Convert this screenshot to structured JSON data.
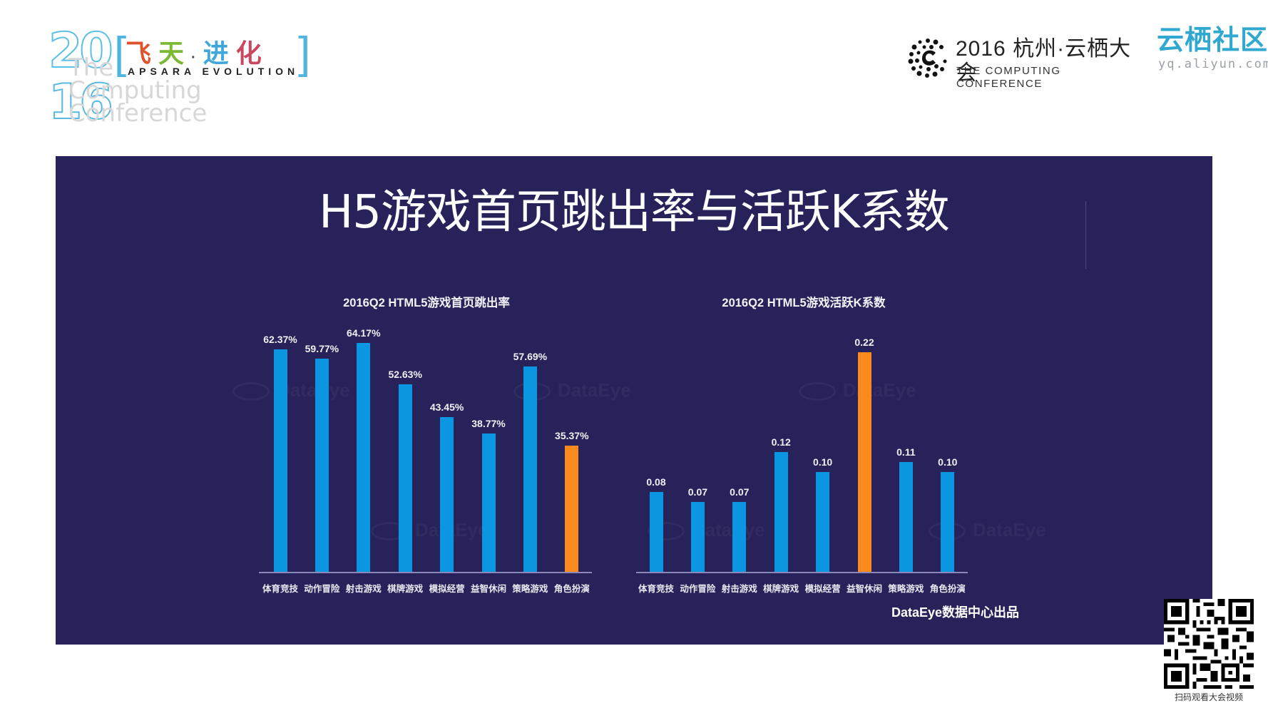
{
  "header": {
    "left_logo": {
      "year_top": "20",
      "year_bottom": "16",
      "ghost_lines": [
        "The",
        "Computing",
        "Conference"
      ],
      "bracket_open": "[",
      "bracket_close": "]",
      "cn_chars": [
        "飞",
        "天",
        "·",
        "进",
        "化"
      ],
      "cn_colors": [
        "#e0522c",
        "#7cb832",
        "#4a4a4a",
        "#3fa7dc",
        "#c94860"
      ],
      "en": "APSARA EVOLUTION"
    },
    "mid_logo": {
      "cn": "2016 杭州·云栖大会",
      "en": "THE COMPUTING CONFERENCE"
    },
    "right_logo": {
      "cn": "云栖社区",
      "en": "yq.aliyun.com"
    }
  },
  "slide": {
    "title": "H5游戏首页跳出率与活跃K系数",
    "source": "DataEye数据中心出品",
    "watermark": "DataEye",
    "colors": {
      "panel": "#27235a",
      "bar": "#0a96e0",
      "highlight": "#fa8a1e",
      "axis": "#8c87b8"
    }
  },
  "qr": {
    "caption": "扫码观看大会视频"
  },
  "chart_data": [
    {
      "type": "bar",
      "title": "2016Q2 HTML5游戏首页跳出率",
      "xlabel": "",
      "ylabel": "",
      "categories": [
        "体育竞技",
        "动作冒险",
        "射击游戏",
        "棋牌游戏",
        "模拟经营",
        "益智休闲",
        "策略游戏",
        "角色扮演"
      ],
      "values": [
        62.37,
        59.77,
        64.17,
        52.63,
        43.45,
        38.77,
        57.69,
        35.37
      ],
      "labels": [
        "62.37%",
        "59.77%",
        "64.17%",
        "52.63%",
        "43.45%",
        "38.77%",
        "57.69%",
        "35.37%"
      ],
      "unit": "%",
      "highlight_index": 7,
      "ylim": [
        0,
        70
      ],
      "grid": false,
      "legend": "none"
    },
    {
      "type": "bar",
      "title": "2016Q2 HTML5游戏活跃K系数",
      "xlabel": "",
      "ylabel": "",
      "categories": [
        "体育竞技",
        "动作冒险",
        "射击游戏",
        "棋牌游戏",
        "模拟经营",
        "益智休闲",
        "策略游戏",
        "角色扮演"
      ],
      "values": [
        0.08,
        0.07,
        0.07,
        0.12,
        0.1,
        0.22,
        0.11,
        0.1
      ],
      "labels": [
        "0.08",
        "0.07",
        "0.07",
        "0.12",
        "0.10",
        "0.22",
        "0.11",
        "0.10"
      ],
      "highlight_index": 5,
      "ylim": [
        0,
        0.25
      ],
      "grid": false,
      "legend": "none"
    }
  ]
}
